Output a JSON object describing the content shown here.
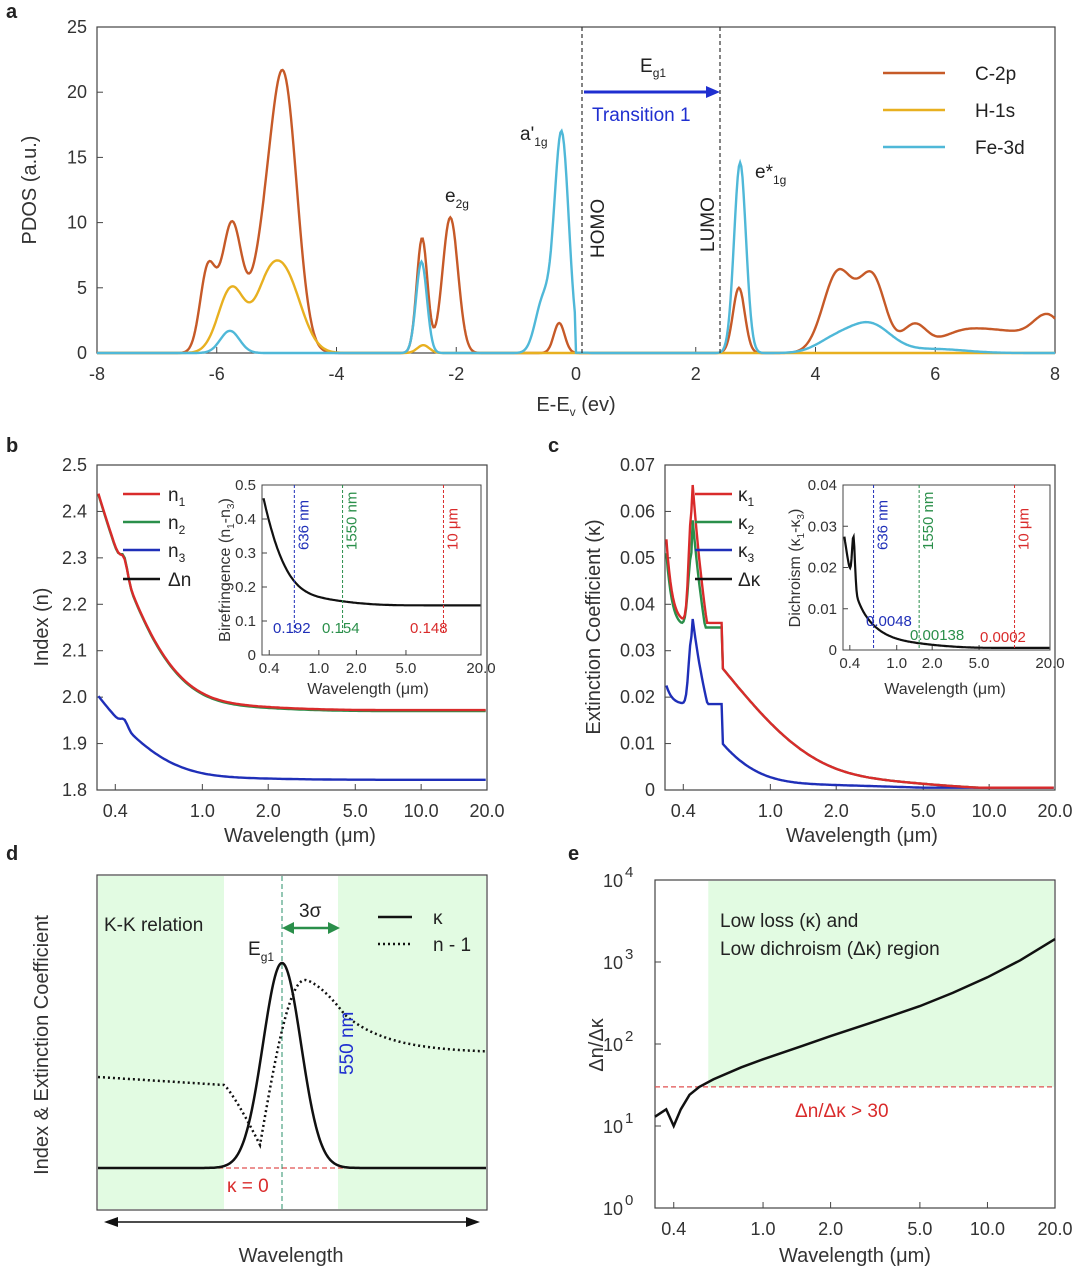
{
  "chart_data": [
    {
      "panel": "a",
      "type": "line",
      "xlabel_main": "E-E",
      "xlabel_sub": "v",
      "xlabel_unit": " (ev)",
      "ylabel": "PDOS (a.u.)",
      "xlim": [
        -8,
        8
      ],
      "ylim": [
        0,
        25
      ],
      "xticks": [
        "-8",
        "-6",
        "-4",
        "-2",
        "0",
        "2",
        "4",
        "6",
        "8"
      ],
      "yticks": [
        "0",
        "5",
        "10",
        "15",
        "20",
        "25"
      ],
      "legend_position": "top-right",
      "series": [
        {
          "name": "C-2p",
          "color": "#c65a28",
          "peaks": [
            [
              -6.15,
              6.3,
              0.13
            ],
            [
              -5.75,
              9.8,
              0.17
            ],
            [
              -4.88,
              20.6,
              0.22
            ],
            [
              -5.25,
              5.5,
              0.2
            ],
            [
              -2.57,
              8.8,
              0.09
            ],
            [
              -2.1,
              10.4,
              0.13
            ],
            [
              -0.28,
              2.3,
              0.09
            ],
            [
              2.72,
              5.0,
              0.1
            ],
            [
              4.38,
              6.2,
              0.25
            ],
            [
              4.95,
              5.7,
              0.22
            ],
            [
              5.65,
              2.0,
              0.2
            ],
            [
              6.4,
              1.3,
              0.4
            ],
            [
              7.2,
              1.5,
              0.5
            ],
            [
              7.9,
              2.4,
              0.25
            ]
          ]
        },
        {
          "name": "H-1s",
          "color": "#e8b020",
          "peaks": [
            [
              -5.75,
              5.0,
              0.22
            ],
            [
              -4.88,
              6.1,
              0.28
            ],
            [
              -5.2,
              2.5,
              0.2
            ],
            [
              -2.55,
              0.6,
              0.1
            ]
          ]
        },
        {
          "name": "Fe-3d",
          "color": "#4fb8d8",
          "peaks": [
            [
              -5.78,
              1.7,
              0.16
            ],
            [
              -2.58,
              7.0,
              0.09
            ],
            [
              -0.55,
              4.0,
              0.13
            ],
            [
              -0.24,
              16.8,
              0.12
            ],
            [
              2.74,
              14.6,
              0.1
            ],
            [
              4.9,
              2.2,
              0.35
            ],
            [
              4.3,
              0.9,
              0.3
            ],
            [
              6.0,
              0.3,
              0.5
            ]
          ]
        }
      ],
      "annotations": [
        {
          "text": "HOMO",
          "x": 0.05
        },
        {
          "text": "LUMO",
          "x": 2.35
        },
        {
          "text": "E",
          "sub": "g1"
        },
        {
          "text": "Transition 1"
        },
        {
          "text": "a'",
          "sub": "1g"
        },
        {
          "text": "e",
          "sub": "2g"
        },
        {
          "text": "e*",
          "sub": "1g"
        }
      ]
    },
    {
      "panel": "b",
      "type": "line",
      "xlabel": "Wavelength (μm)",
      "ylabel": "Index (n)",
      "xscale": "log",
      "xlim": [
        0.33,
        20
      ],
      "ylim": [
        1.8,
        2.5
      ],
      "xticks": [
        "0.4",
        "1.0",
        "2.0",
        "5.0",
        "10.0",
        "20.0"
      ],
      "yticks": [
        "1.8",
        "1.9",
        "2.0",
        "2.1",
        "2.2",
        "2.3",
        "2.4",
        "2.5"
      ],
      "legend_position": "top-left",
      "series": [
        {
          "name": "n",
          "sub": "1",
          "color": "#d92b2b",
          "inf": 1.972,
          "amp": 0.44,
          "bump": 0.03
        },
        {
          "name": "n",
          "sub": "2",
          "color": "#2a8f4a",
          "inf": 1.97,
          "amp": 0.44,
          "bump": 0.035
        },
        {
          "name": "n",
          "sub": "3",
          "color": "#1f2fb8",
          "inf": 1.822,
          "amp": 0.17,
          "bump": 0.015
        },
        {
          "name": "Δn",
          "sub": "",
          "color": "#111111"
        }
      ],
      "inset": {
        "xlabel": "Wavelength (μm)",
        "ylabel": "Birefringence (n",
        "ylabel_sub1": "1",
        "ylabel_mid": "-n",
        "ylabel_sub2": "3",
        "ylabel_end": ")",
        "ylim": [
          0,
          0.5
        ],
        "yticks": [
          "0",
          "0.1",
          "0.2",
          "0.3",
          "0.4",
          "0.5"
        ],
        "xticks": [
          "0.4",
          "1.0",
          "2.0",
          "5.0",
          "20.0"
        ],
        "markers": [
          {
            "label": "636 nm",
            "x": 0.636,
            "value": "0.192",
            "color": "#1f2fb8"
          },
          {
            "label": "1550 nm",
            "x": 1.55,
            "value": "0.154",
            "color": "#2a8f4a"
          },
          {
            "label": "10 μm",
            "x": 10,
            "value": "0.148",
            "color": "#d92b2b"
          }
        ]
      }
    },
    {
      "panel": "c",
      "type": "line",
      "xlabel": "Wavelength (μm)",
      "ylabel": "Extinction Coefficient (κ)",
      "xscale": "log",
      "xlim": [
        0.33,
        20
      ],
      "ylim": [
        0,
        0.07
      ],
      "xticks": [
        "0.4",
        "1.0",
        "2.0",
        "5.0",
        "10.0",
        "20.0"
      ],
      "yticks": [
        "0",
        "0.01",
        "0.02",
        "0.03",
        "0.04",
        "0.05",
        "0.06",
        "0.07"
      ],
      "legend_position": "top-right",
      "series": [
        {
          "name": "κ",
          "sub": "1",
          "color": "#d92b2b"
        },
        {
          "name": "κ",
          "sub": "2",
          "color": "#2a8f4a"
        },
        {
          "name": "κ",
          "sub": "3",
          "color": "#1f2fb8"
        },
        {
          "name": "Δκ",
          "sub": "",
          "color": "#111111"
        }
      ],
      "inset": {
        "xlabel": "Wavelength (μm)",
        "ylabel": "Dichroism (κ",
        "ylabel_sub1": "1",
        "ylabel_mid": "-κ",
        "ylabel_sub2": "3",
        "ylabel_end": ")",
        "ylim": [
          0,
          0.04
        ],
        "yticks": [
          "0",
          "0.01",
          "0.02",
          "0.03",
          "0.04"
        ],
        "xticks": [
          "0.4",
          "1.0",
          "2.0",
          "5.0",
          "20.0"
        ],
        "markers": [
          {
            "label": "636 nm",
            "x": 0.636,
            "value": "0.0048",
            "color": "#1f2fb8"
          },
          {
            "label": "1550 nm",
            "x": 1.55,
            "value": "0.00138",
            "color": "#2a8f4a"
          },
          {
            "label": "10 μm",
            "x": 10,
            "value": "0.0002",
            "color": "#d92b2b"
          }
        ]
      }
    },
    {
      "panel": "d",
      "type": "line",
      "xlabel": "Wavelength",
      "ylabel": "Index & Extinction Coefficient",
      "legend_position": "top-right",
      "series": [
        {
          "name": "κ",
          "style": "solid"
        },
        {
          "name": "n - 1",
          "style": "dotted"
        }
      ],
      "annotations": [
        {
          "text": "K-K relation"
        },
        {
          "text": "3σ"
        },
        {
          "text": "E",
          "sub": "g1"
        },
        {
          "text": "550 nm"
        },
        {
          "text": "κ = 0"
        }
      ]
    },
    {
      "panel": "e",
      "type": "line",
      "xlabel": "Wavelength (μm)",
      "ylabel": "Δn/Δκ",
      "xscale": "log",
      "yscale": "log",
      "xlim": [
        0.33,
        20
      ],
      "ylim": [
        1,
        10000
      ],
      "xticks": [
        "0.4",
        "1.0",
        "2.0",
        "5.0",
        "10.0",
        "20.0"
      ],
      "yticks": [
        "10",
        "10",
        "10",
        "10",
        "10"
      ],
      "ytick_exponents": [
        "0",
        "1",
        "2",
        "3",
        "4"
      ],
      "threshold": {
        "value": 30,
        "label": "Δn/Δκ > 30"
      },
      "annotations": [
        {
          "text": "Low loss (κ) and"
        },
        {
          "text": "Low dichroism (Δκ) region"
        }
      ],
      "series": [
        {
          "name": "Δn/Δκ",
          "points": [
            [
              0.33,
              13
            ],
            [
              0.37,
              16
            ],
            [
              0.4,
              10
            ],
            [
              0.43,
              16
            ],
            [
              0.47,
              24
            ],
            [
              0.52,
              30
            ],
            [
              0.6,
              37
            ],
            [
              0.8,
              52
            ],
            [
              1.0,
              65
            ],
            [
              1.5,
              95
            ],
            [
              2.0,
              125
            ],
            [
              3.0,
              180
            ],
            [
              5.0,
              290
            ],
            [
              7.0,
              420
            ],
            [
              10.0,
              650
            ],
            [
              14.0,
              1050
            ],
            [
              20.0,
              1900
            ]
          ]
        }
      ]
    }
  ],
  "panel_labels": [
    "a",
    "b",
    "c",
    "d",
    "e"
  ]
}
